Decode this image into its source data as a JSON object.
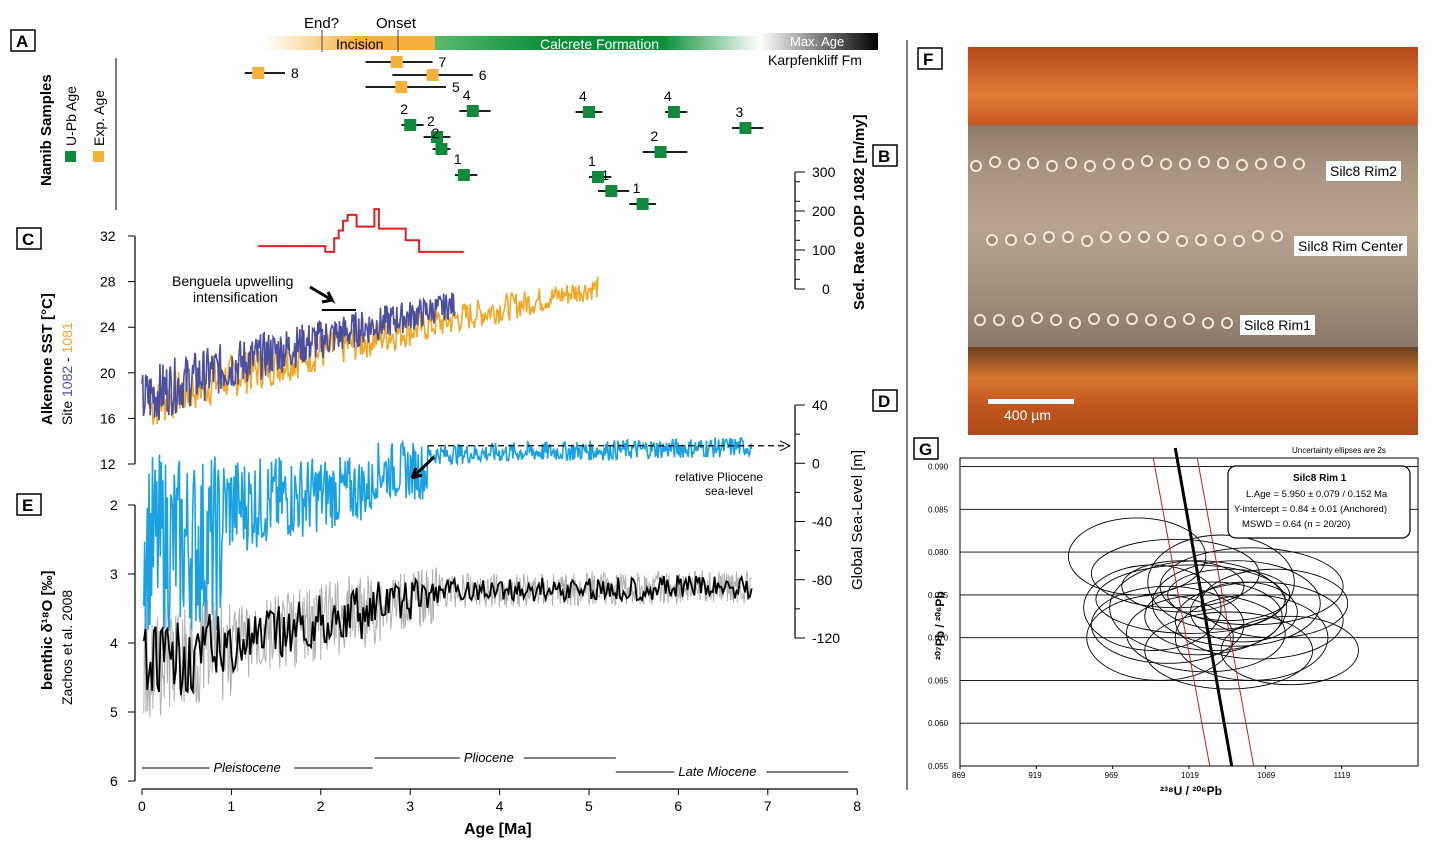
{
  "panels": {
    "A": "A",
    "B": "B",
    "C": "C",
    "D": "D",
    "E": "E",
    "F": "F",
    "G": "G"
  },
  "timeline": {
    "end_label": "End?",
    "onset_label": "Onset",
    "incision": "Incision",
    "calcrete": "Calcrete Formation",
    "maxage": "Max. Age",
    "karpfenkliff": "Karpfenkliff Fm",
    "colors": {
      "incision": "#f5a623",
      "calcrete": "#0a8f3a",
      "maxage": "#000000"
    }
  },
  "namib": {
    "title": "Namib Samples",
    "legend_upb": "U-Pb Age",
    "legend_exp": "Exp. Age",
    "upb_color": "#128a3c",
    "exp_color": "#f6b13d",
    "exp_samples": [
      {
        "label": "8",
        "age": 1.3,
        "lo": 1.15,
        "hi": 1.6
      },
      {
        "label": "7",
        "age": 2.85,
        "lo": 2.5,
        "hi": 3.25
      },
      {
        "label": "6",
        "age": 3.25,
        "lo": 2.8,
        "hi": 3.7
      },
      {
        "label": "5",
        "age": 2.9,
        "lo": 2.5,
        "hi": 3.4
      }
    ],
    "upb_samples": [
      {
        "label": "4",
        "age": 3.7,
        "lo": 3.55,
        "hi": 3.9
      },
      {
        "label": "2",
        "age": 3.0,
        "lo": 2.9,
        "hi": 3.15
      },
      {
        "label": "2",
        "age": 3.3,
        "lo": 3.15,
        "hi": 3.45
      },
      {
        "label": "2",
        "age": 3.35,
        "lo": 3.25,
        "hi": 3.45
      },
      {
        "label": "1",
        "age": 3.6,
        "lo": 3.5,
        "hi": 3.75
      },
      {
        "label": "4",
        "age": 5.0,
        "lo": 4.85,
        "hi": 5.15
      },
      {
        "label": "4",
        "age": 5.95,
        "lo": 5.85,
        "hi": 6.1
      },
      {
        "label": "3",
        "age": 6.75,
        "lo": 6.6,
        "hi": 6.95
      },
      {
        "label": "2",
        "age": 5.8,
        "lo": 5.6,
        "hi": 6.1
      },
      {
        "label": "1",
        "age": 5.25,
        "lo": 5.1,
        "hi": 5.45
      },
      {
        "label": "1",
        "age": 5.1,
        "lo": 5.0,
        "hi": 5.25
      },
      {
        "label": "1",
        "age": 5.6,
        "lo": 5.45,
        "hi": 5.75
      }
    ]
  },
  "chart_data": [
    {
      "type": "line",
      "panel": "B",
      "ylabel": "Sed. Rate ODP 1082 [m/my]",
      "ylim": [
        0,
        300
      ],
      "yticks": [
        "0",
        "100",
        "200",
        "300"
      ],
      "color": "#e02020",
      "x": [
        1.3,
        2.05,
        2.05,
        2.15,
        2.15,
        2.2,
        2.2,
        2.25,
        2.25,
        2.3,
        2.3,
        2.4,
        2.4,
        2.6,
        2.6,
        2.65,
        2.65,
        2.95,
        2.95,
        3.1,
        3.1,
        3.6
      ],
      "y": [
        110,
        110,
        95,
        95,
        130,
        130,
        150,
        150,
        175,
        175,
        190,
        190,
        160,
        160,
        205,
        205,
        155,
        155,
        125,
        125,
        95,
        95
      ]
    },
    {
      "type": "line",
      "panel": "C",
      "ylabel": "Alkenone SST [°C]",
      "sublabel": "Site",
      "site1": "1082",
      "sep": " - ",
      "site2": "1081",
      "ylim": [
        12,
        32
      ],
      "yticks": [
        "12",
        "16",
        "20",
        "24",
        "28",
        "32"
      ],
      "series": [
        {
          "name": "1082",
          "color": "#4b4f9e",
          "xrange": [
            0,
            3.5
          ],
          "start": 17.5,
          "end": 26.0,
          "amp": 2.6
        },
        {
          "name": "1081",
          "color": "#f0a828",
          "xrange": [
            0.1,
            5.1
          ],
          "start": 17.0,
          "end": 27.5,
          "amp": 2.2
        }
      ],
      "annotation": "Benguela upwelling",
      "annotation2": "intensification"
    },
    {
      "type": "line",
      "panel": "D",
      "ylabel": "Global Sea-Level [m]",
      "ylim": [
        -120,
        40
      ],
      "yticks": [
        "40",
        "0",
        "-40",
        "-80",
        "-120"
      ],
      "color": "#1ba1e2",
      "dashed_level": 12,
      "note1": "relative Pliocene",
      "note2": "sea-level"
    },
    {
      "type": "line",
      "panel": "E",
      "ylabel": "benthic δ¹⁸O [‰]",
      "sublabel": "Zachos et al. 2008",
      "ylim": [
        2,
        6
      ],
      "yticks": [
        "2",
        "3",
        "4",
        "5",
        "6"
      ],
      "colors": {
        "raw": "#b0b0b0",
        "smooth": "#000000"
      }
    },
    {
      "type": "axis",
      "xlabel": "Age  [Ma]",
      "xlim": [
        0,
        8
      ],
      "xticks": [
        "0",
        "1",
        "2",
        "3",
        "4",
        "5",
        "6",
        "7",
        "8"
      ],
      "epochs": [
        "Pleistocene",
        "Pliocene",
        "Late Miocene"
      ]
    },
    {
      "type": "scatter",
      "panel": "G",
      "title": "Silc8 Rim 1",
      "lines": [
        "L.Age = 5.950 ± 0.079 / 0.152 Ma",
        "Y-intercept = 0.84 ± 0.01 (Anchored)",
        "MSWD = 0.64  (n = 20/20)"
      ],
      "note": "Uncertainty ellipses are 2s",
      "xlabel": "²³⁸U / ²⁰⁶Pb",
      "ylabel": "²⁰⁷Pb / ²⁰⁶Pb",
      "xlim": [
        869,
        1169
      ],
      "ylim": [
        0.055,
        0.091
      ],
      "xticks": [
        "869",
        "919",
        "969",
        "1019",
        "1069",
        "1119"
      ],
      "yticks": [
        "0.055",
        "0.060",
        "0.065",
        "0.070",
        "0.075",
        "0.080",
        "0.085",
        "0.090"
      ],
      "ellipses": [
        {
          "cx": 985,
          "cy": 0.0795,
          "rx": 45,
          "ry": 0.0045
        },
        {
          "cx": 1010,
          "cy": 0.0775,
          "rx": 55,
          "ry": 0.004
        },
        {
          "cx": 1040,
          "cy": 0.0765,
          "rx": 48,
          "ry": 0.0055
        },
        {
          "cx": 1060,
          "cy": 0.076,
          "rx": 60,
          "ry": 0.0045
        },
        {
          "cx": 995,
          "cy": 0.0735,
          "rx": 45,
          "ry": 0.005
        },
        {
          "cx": 1020,
          "cy": 0.0745,
          "rx": 62,
          "ry": 0.004
        },
        {
          "cx": 1050,
          "cy": 0.074,
          "rx": 55,
          "ry": 0.005
        },
        {
          "cx": 1005,
          "cy": 0.0715,
          "rx": 50,
          "ry": 0.0045
        },
        {
          "cx": 1035,
          "cy": 0.0725,
          "rx": 45,
          "ry": 0.004
        },
        {
          "cx": 1065,
          "cy": 0.072,
          "rx": 55,
          "ry": 0.0045
        },
        {
          "cx": 1000,
          "cy": 0.07,
          "rx": 48,
          "ry": 0.005
        },
        {
          "cx": 1030,
          "cy": 0.0705,
          "rx": 52,
          "ry": 0.0045
        },
        {
          "cx": 1060,
          "cy": 0.07,
          "rx": 50,
          "ry": 0.005
        },
        {
          "cx": 1045,
          "cy": 0.075,
          "rx": 40,
          "ry": 0.003
        },
        {
          "cx": 1015,
          "cy": 0.076,
          "rx": 40,
          "ry": 0.003
        },
        {
          "cx": 1075,
          "cy": 0.074,
          "rx": 48,
          "ry": 0.004
        },
        {
          "cx": 1045,
          "cy": 0.0685,
          "rx": 55,
          "ry": 0.0045
        },
        {
          "cx": 1085,
          "cy": 0.0685,
          "rx": 45,
          "ry": 0.004
        },
        {
          "cx": 1025,
          "cy": 0.0735,
          "rx": 58,
          "ry": 0.0055
        },
        {
          "cx": 1055,
          "cy": 0.073,
          "rx": 35,
          "ry": 0.0035
        }
      ],
      "regression": {
        "x_at_top": 1010,
        "x_at_bottom": 1047
      }
    }
  ],
  "photo": {
    "rim2": "Silc8 Rim2",
    "center": "Silc8 Rim Center",
    "rim1": "Silc8 Rim1",
    "scale": "400 µm"
  }
}
